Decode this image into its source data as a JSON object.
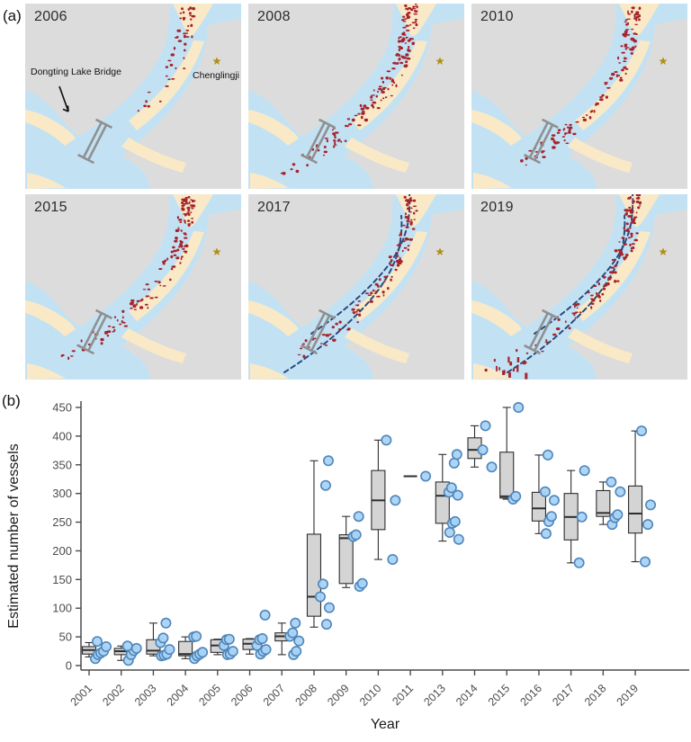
{
  "figure": {
    "panel_a_label": "(a)",
    "panel_b_label": "(b)"
  },
  "maps": {
    "annotations": {
      "bridge_label": "Dongting Lake Bridge",
      "city_label": "Chenglingji"
    },
    "colors": {
      "background": "#dcdcdc",
      "water": "#c2e2f4",
      "land": "#fae9c6",
      "vessel_dot": "#a6242c",
      "bridge": "#909090",
      "star": "#af9015",
      "channel_line": "#2b4a7e"
    },
    "panels": [
      {
        "year": "2006",
        "vessel_count": 45,
        "dashed_channel": false,
        "labeled": true,
        "extra_cluster": false
      },
      {
        "year": "2008",
        "vessel_count": 160,
        "dashed_channel": false,
        "labeled": false,
        "extra_cluster": false
      },
      {
        "year": "2010",
        "vessel_count": 120,
        "dashed_channel": false,
        "labeled": false,
        "extra_cluster": false
      },
      {
        "year": "2015",
        "vessel_count": 140,
        "dashed_channel": false,
        "labeled": false,
        "extra_cluster": false
      },
      {
        "year": "2017",
        "vessel_count": 110,
        "dashed_channel": true,
        "labeled": false,
        "extra_cluster": false
      },
      {
        "year": "2019",
        "vessel_count": 115,
        "dashed_channel": true,
        "labeled": false,
        "extra_cluster": true
      }
    ]
  },
  "chart_data": {
    "type": "boxplot",
    "title": "",
    "xlabel": "Year",
    "ylabel": "Estimated number of vessels",
    "ylim": [
      0,
      450
    ],
    "yticks": [
      0,
      50,
      100,
      150,
      200,
      250,
      300,
      350,
      400,
      450
    ],
    "grid": false,
    "legend": false,
    "categories": [
      "2001",
      "2002",
      "2003",
      "2004",
      "2005",
      "2006",
      "2007",
      "2008",
      "2009",
      "2010",
      "2011",
      "2013",
      "2014",
      "2015",
      "2016",
      "2017",
      "2018",
      "2019"
    ],
    "boxes": [
      {
        "year": "2001",
        "whisker_low": 15,
        "q1": 20,
        "median": 27,
        "q3": 33,
        "whisker_high": 40
      },
      {
        "year": "2002",
        "whisker_low": 9,
        "q1": 19,
        "median": 25,
        "q3": 30,
        "whisker_high": 34
      },
      {
        "year": "2003",
        "whisker_low": 17,
        "q1": 20,
        "median": 26,
        "q3": 45,
        "whisker_high": 74
      },
      {
        "year": "2004",
        "whisker_low": 12,
        "q1": 17,
        "median": 20,
        "q3": 42,
        "whisker_high": 50
      },
      {
        "year": "2005",
        "whisker_low": 19,
        "q1": 23,
        "median": 35,
        "q3": 45,
        "whisker_high": 46
      },
      {
        "year": "2006",
        "whisker_low": 20,
        "q1": 28,
        "median": 38,
        "q3": 46,
        "whisker_high": 47
      },
      {
        "year": "2007",
        "whisker_low": 19,
        "q1": 43,
        "median": 51,
        "q3": 57,
        "whisker_high": 74
      },
      {
        "year": "2008",
        "whisker_low": 67,
        "q1": 86,
        "median": 120,
        "q3": 229,
        "whisker_high": 357
      },
      {
        "year": "2009",
        "whisker_low": 136,
        "q1": 143,
        "median": 222,
        "q3": 228,
        "whisker_high": 260
      },
      {
        "year": "2010",
        "whisker_low": 185,
        "q1": 237,
        "median": 288,
        "q3": 340,
        "whisker_high": 393
      },
      {
        "year": "2011",
        "whisker_low": 330,
        "q1": 330,
        "median": 330,
        "q3": 330,
        "whisker_high": 330
      },
      {
        "year": "2013",
        "whisker_low": 217,
        "q1": 248,
        "median": 296,
        "q3": 320,
        "whisker_high": 368
      },
      {
        "year": "2014",
        "whisker_low": 346,
        "q1": 361,
        "median": 376,
        "q3": 397,
        "whisker_high": 418
      },
      {
        "year": "2015",
        "whisker_low": 290,
        "q1": 292,
        "median": 295,
        "q3": 372,
        "whisker_high": 450
      },
      {
        "year": "2016",
        "whisker_low": 230,
        "q1": 252,
        "median": 274,
        "q3": 302,
        "whisker_high": 367
      },
      {
        "year": "2017",
        "whisker_low": 179,
        "q1": 219,
        "median": 259,
        "q3": 300,
        "whisker_high": 340
      },
      {
        "year": "2018",
        "whisker_low": 246,
        "q1": 260,
        "median": 266,
        "q3": 305,
        "whisker_high": 320
      },
      {
        "year": "2019",
        "whisker_low": 181,
        "q1": 231,
        "median": 265,
        "q3": 313,
        "whisker_high": 409
      }
    ],
    "points": [
      [
        12,
        19,
        22,
        25,
        33,
        42
      ],
      [
        9,
        19,
        26,
        30,
        34
      ],
      [
        17,
        18,
        20,
        28,
        40,
        48,
        74
      ],
      [
        12,
        17,
        20,
        23,
        50,
        51
      ],
      [
        19,
        20,
        25,
        35,
        45,
        46
      ],
      [
        20,
        25,
        28,
        35,
        45,
        47,
        88
      ],
      [
        19,
        25,
        43,
        51,
        57,
        74
      ],
      [
        72,
        101,
        120,
        142,
        314,
        357
      ],
      [
        138,
        143,
        225,
        228,
        260
      ],
      [
        185,
        288,
        393
      ],
      [
        330
      ],
      [
        220,
        232,
        248,
        251,
        297,
        302,
        310,
        353,
        368
      ],
      [
        346,
        376,
        418
      ],
      [
        290,
        295,
        450
      ],
      [
        230,
        251,
        260,
        288,
        303,
        367
      ],
      [
        179,
        259,
        340
      ],
      [
        246,
        258,
        263,
        303,
        320
      ],
      [
        181,
        246,
        280,
        409
      ]
    ],
    "style": {
      "box_fill": "#d4d4d4",
      "box_stroke": "#2e2e2e",
      "point_fill": "#a9d3f5",
      "point_stroke": "#4f86ba",
      "axis_color": "#4b4b4b",
      "tick_text_color": "#4d4d4d",
      "label_text_color": "#1a1a1a"
    }
  }
}
